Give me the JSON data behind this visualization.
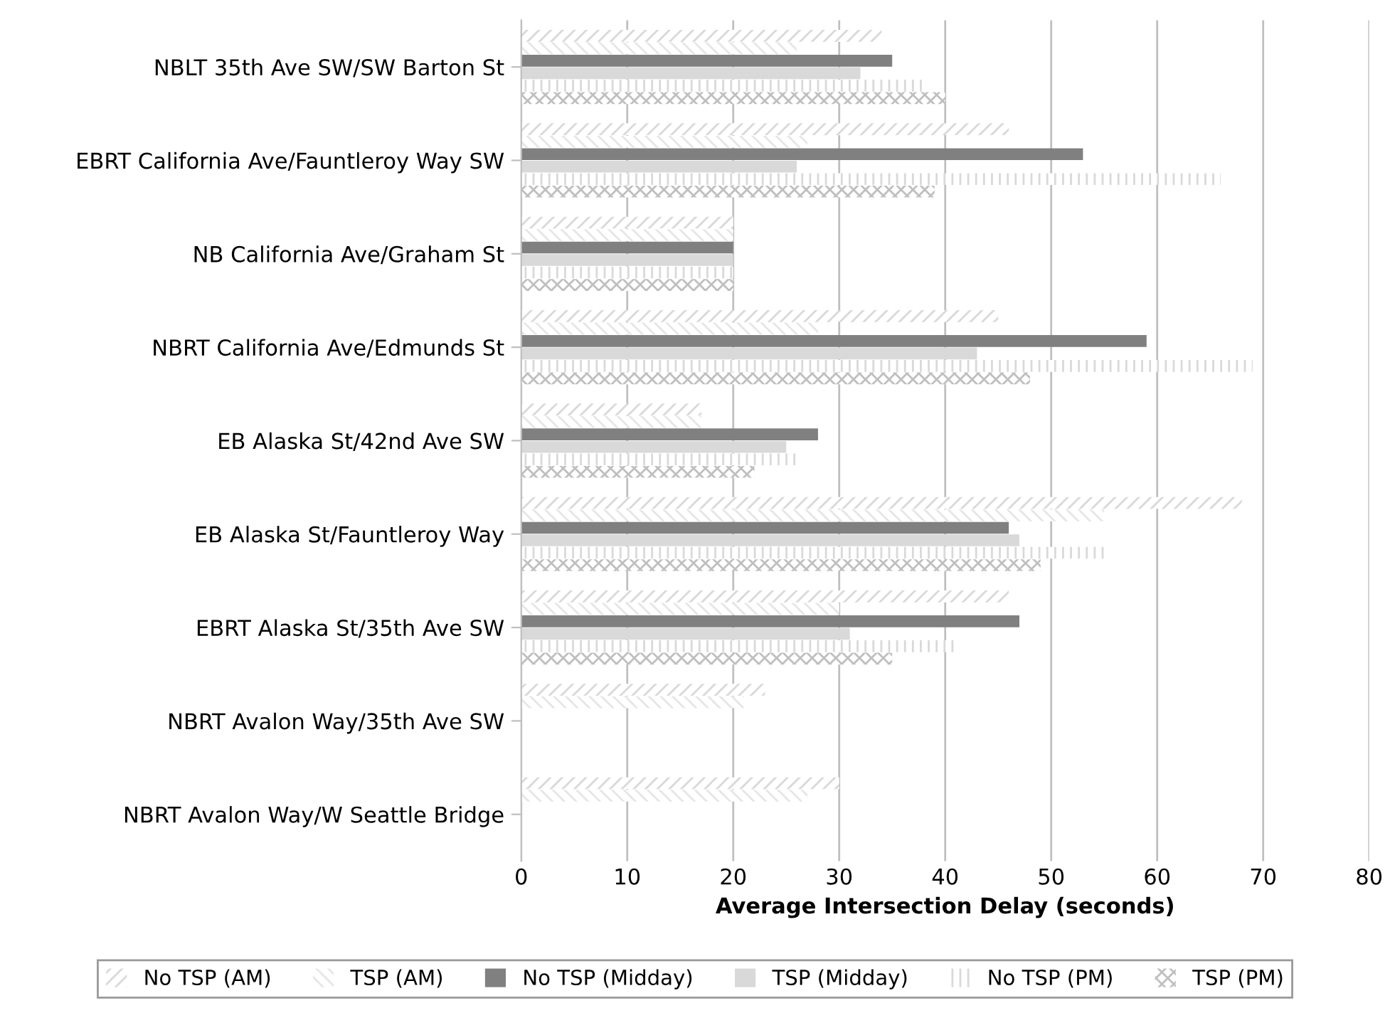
{
  "chart_data": {
    "type": "bar",
    "orientation": "horizontal",
    "xlabel": "Average Intersection Delay (seconds)",
    "categories": [
      "NBLT 35th Ave SW/SW Barton St",
      "EBRT California Ave/Fauntleroy Way SW",
      "NB California Ave/Graham St",
      "NBRT California Ave/Edmunds St",
      "EB Alaska St/42nd Ave SW",
      "EB Alaska St/Fauntleroy Way",
      "EBRT Alaska St/35th Ave SW",
      "NBRT Avalon Way/35th Ave SW",
      "NBRT Avalon Way/W Seattle Bridge"
    ],
    "series": [
      {
        "name": "No TSP (AM)",
        "color": "#d9d9d9",
        "values": [
          34,
          46,
          20,
          45,
          17,
          68,
          46,
          23,
          30
        ]
      },
      {
        "name": "TSP (AM)",
        "color": "#e6e6e6",
        "values": [
          26,
          27,
          20,
          28,
          17,
          55,
          30,
          21,
          27
        ]
      },
      {
        "name": "No TSP (Midday)",
        "color": "#808080",
        "values": [
          35,
          53,
          20,
          59,
          28,
          46,
          47,
          null,
          null
        ]
      },
      {
        "name": "TSP (Midday)",
        "color": "#d9d9d9",
        "values": [
          32,
          26,
          20,
          43,
          25,
          47,
          31,
          null,
          null
        ]
      },
      {
        "name": "No TSP (PM)",
        "color": "#d9d9d9",
        "values": [
          38,
          66,
          20,
          69,
          26,
          55,
          41,
          null,
          null
        ]
      },
      {
        "name": "TSP (PM)",
        "color": "#bfbfbf",
        "values": [
          40,
          39,
          20,
          48,
          22,
          49,
          35,
          null,
          null
        ]
      }
    ],
    "xlim": [
      0,
      80
    ],
    "xticks": [
      0,
      10,
      20,
      30,
      40,
      50,
      60,
      70,
      80
    ],
    "grid": "x",
    "legend": "bottom"
  }
}
